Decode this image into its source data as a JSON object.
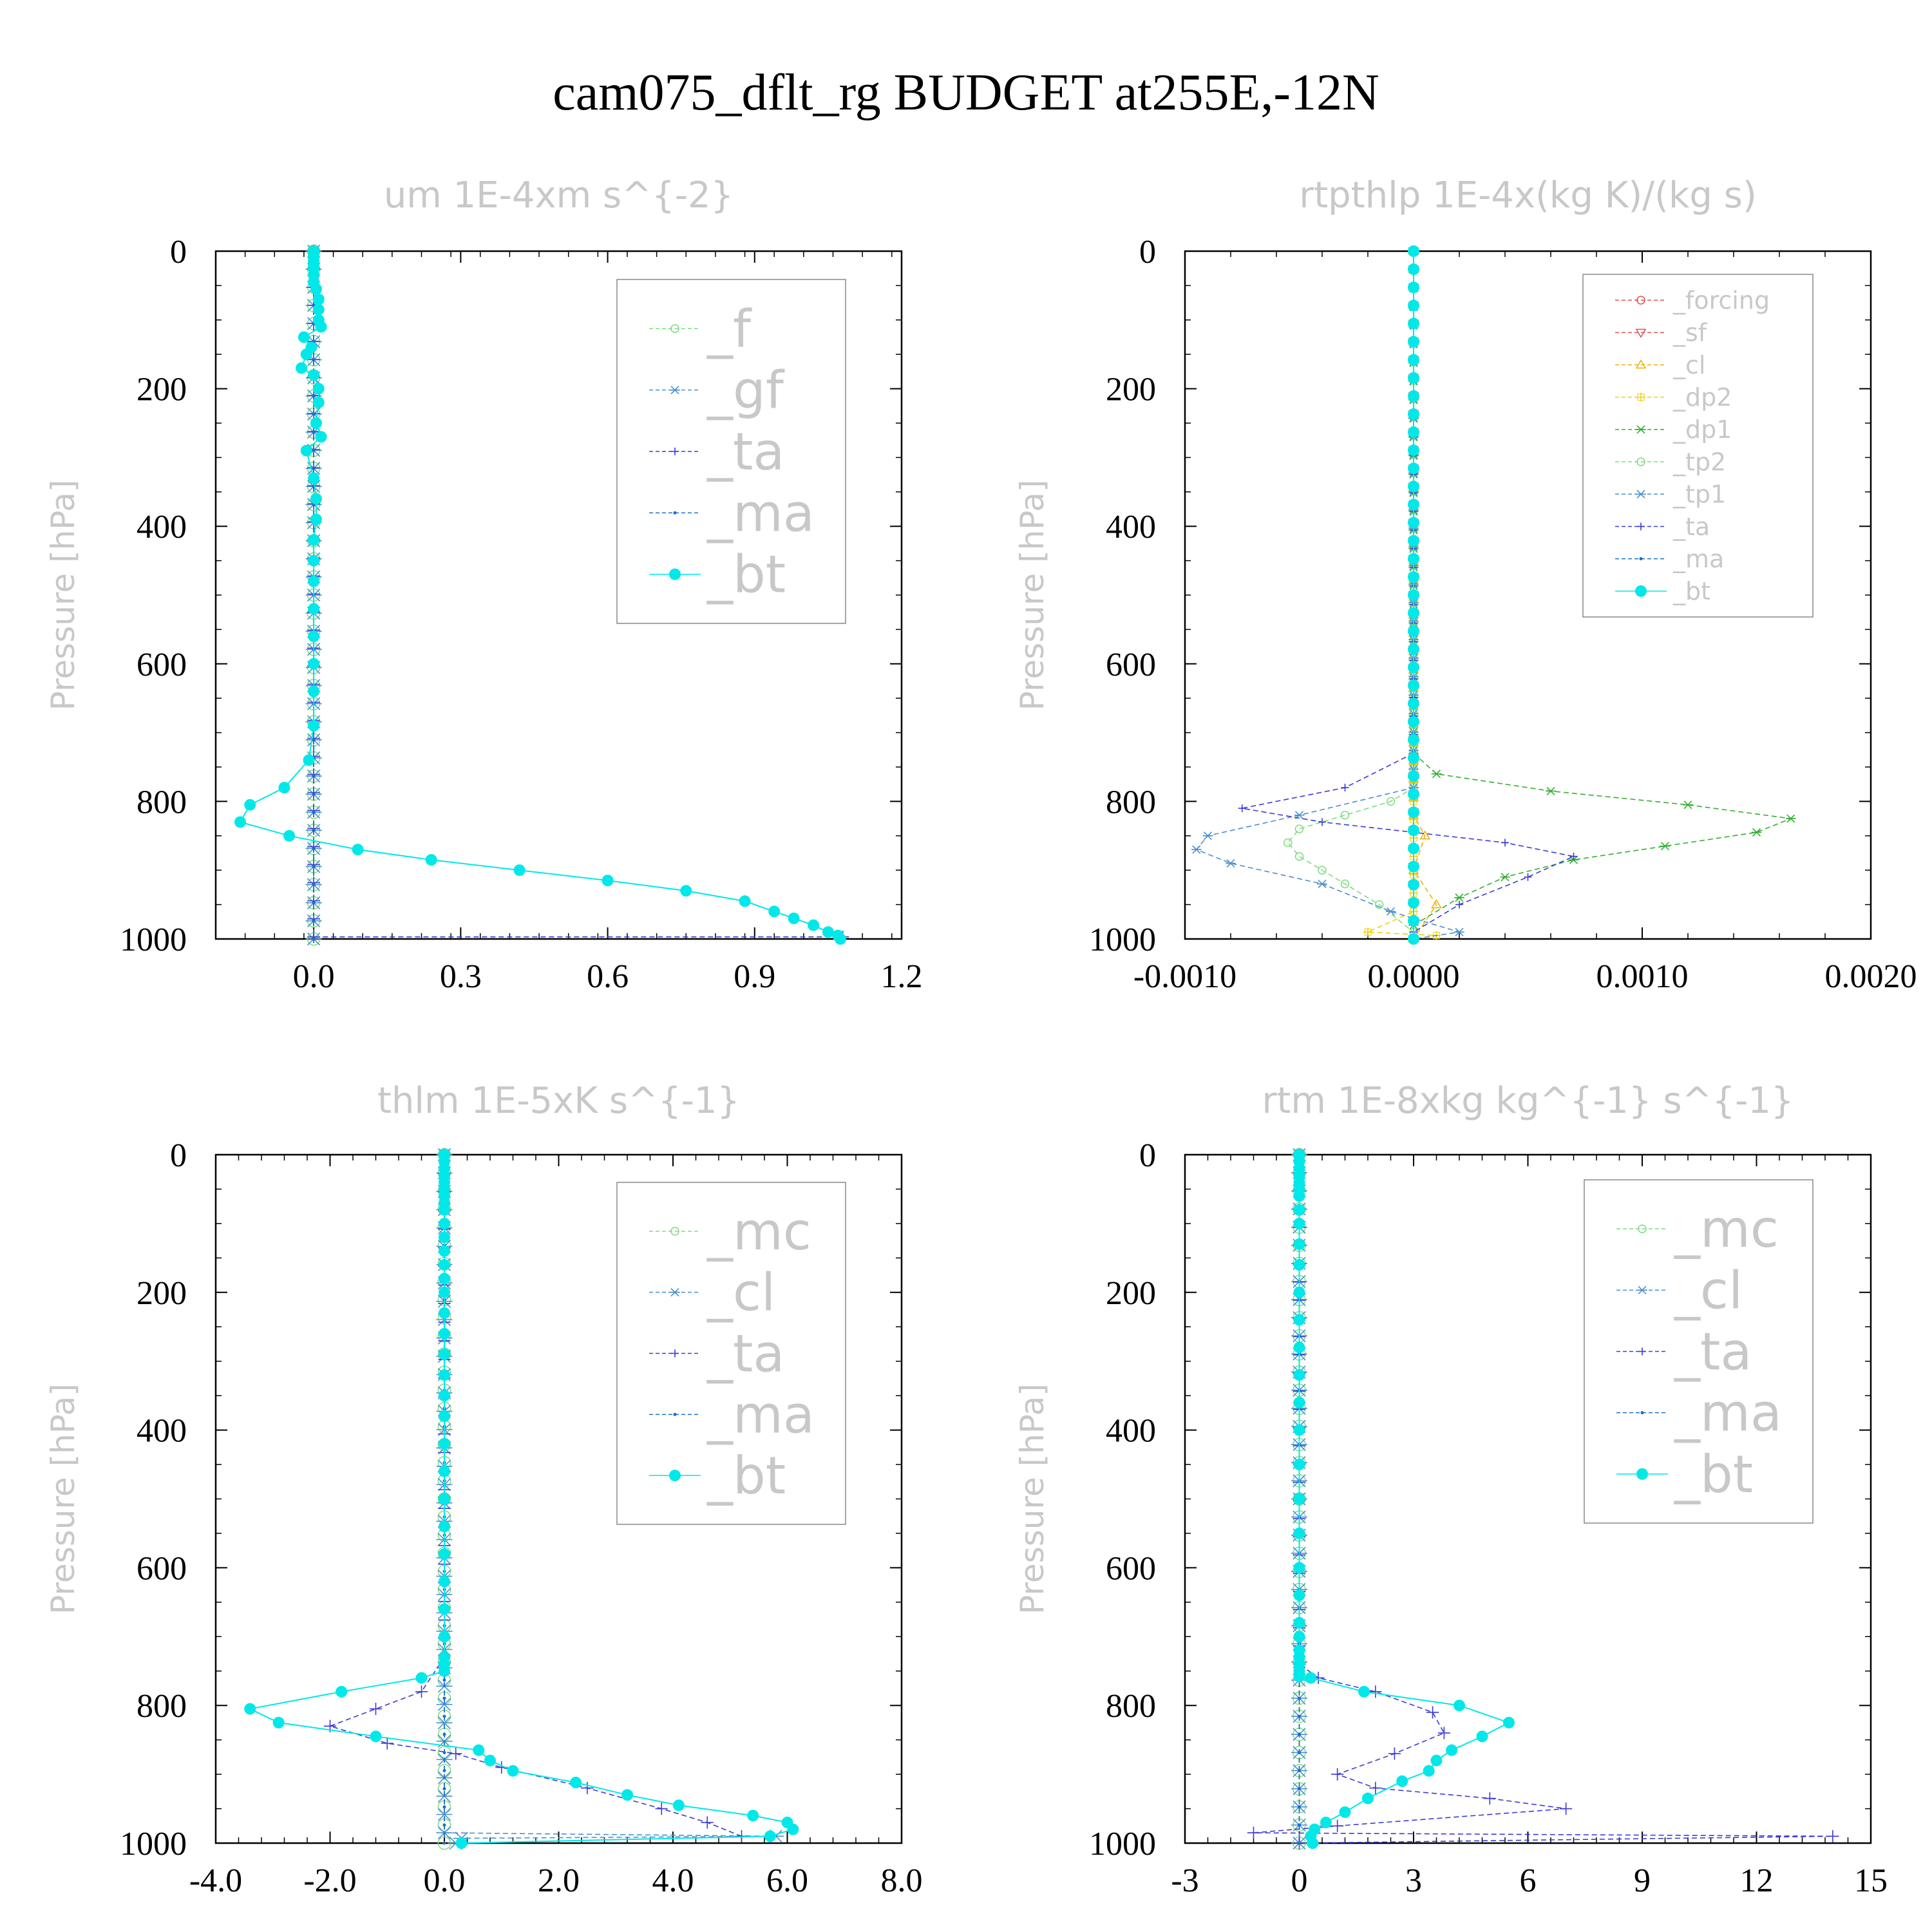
{
  "figure_title": "cam075_dflt_rg  BUDGET at255E,-12N",
  "colors": {
    "_f": "#7fdc7f",
    "_gf": "#4a8fd0",
    "_ta": "#3a3ad8",
    "_ma": "#1a6fc8",
    "_bt": "#00e8e8",
    "_mc": "#7fdc7f",
    "_cl_blue": "#4a8fd0",
    "_forcing": "#e05050",
    "_sf": "#e05050",
    "_cl": "#f0b000",
    "_dp2": "#f0d000",
    "_dp1": "#30b030",
    "_tp2": "#7fdc7f",
    "_tp1": "#4a8fd0"
  },
  "chart_data": [
    {
      "type": "line",
      "title": "um   1E-4xm s^{-2}",
      "ylabel": "Pressure [hPa]",
      "ylim": [
        1000,
        0
      ],
      "xlim": [
        -0.2,
        1.2
      ],
      "xticks": [
        "0.0",
        "0.3",
        "0.6",
        "0.9",
        "1.2"
      ],
      "yticks": [
        "0",
        "200",
        "400",
        "600",
        "800",
        "1000"
      ],
      "legend": [
        "_f",
        "_gf",
        "_ta",
        "_ma",
        "_bt"
      ],
      "legend_position": "top-right",
      "series": [
        {
          "name": "_f",
          "x": [
            0,
            0
          ],
          "y": [
            0,
            1000
          ]
        },
        {
          "name": "_gf",
          "x": [
            0,
            0
          ],
          "y": [
            0,
            1000
          ]
        },
        {
          "name": "_ta",
          "x": [
            0,
            0,
            1.08
          ],
          "y": [
            0,
            997,
            997
          ]
        },
        {
          "name": "_ma",
          "x": [
            0,
            0
          ],
          "y": [
            0,
            1000
          ]
        },
        {
          "name": "_bt",
          "x": [
            0,
            0,
            0,
            0,
            0,
            0,
            0,
            0,
            0.005,
            0.01,
            0.01,
            0.01,
            0.015,
            -0.02,
            -0.005,
            -0.015,
            -0.025,
            0,
            0.01,
            0.01,
            0.005,
            0.015,
            -0.015,
            0,
            0.005,
            0.005,
            0,
            0,
            0,
            0,
            0,
            0,
            0,
            0,
            -0.01,
            -0.06,
            -0.13,
            -0.15,
            -0.05,
            0.09,
            0.24,
            0.42,
            0.6,
            0.76,
            0.88,
            0.94,
            0.98,
            1.02,
            1.05,
            1.07,
            1.075
          ],
          "y": [
            0,
            5,
            10,
            15,
            20,
            25,
            35,
            45,
            55,
            70,
            85,
            100,
            110,
            125,
            140,
            150,
            170,
            180,
            200,
            220,
            250,
            270,
            290,
            330,
            360,
            390,
            420,
            450,
            480,
            520,
            560,
            600,
            640,
            690,
            740,
            780,
            805,
            830,
            850,
            870,
            885,
            900,
            915,
            930,
            945,
            960,
            970,
            980,
            990,
            995,
            1000
          ]
        }
      ]
    },
    {
      "type": "line",
      "title": "rtpthlp   1E-4x(kg K)/(kg s)",
      "ylabel": "Pressure [hPa]",
      "ylim": [
        1000,
        0
      ],
      "xlim": [
        -0.001,
        0.002
      ],
      "xticks": [
        "-0.0010",
        "0.0000",
        "0.0010",
        "0.0020"
      ],
      "yticks": [
        "0",
        "200",
        "400",
        "600",
        "800",
        "1000"
      ],
      "legend": [
        "_forcing",
        "_sf",
        "_cl",
        "_dp2",
        "_dp1",
        "_tp2",
        "_tp1",
        "_ta",
        "_ma",
        "_bt"
      ],
      "legend_position": "top-right",
      "series": [
        {
          "name": "_forcing",
          "x": [
            0,
            0
          ],
          "y": [
            0,
            1000
          ]
        },
        {
          "name": "_sf",
          "x": [
            0,
            0
          ],
          "y": [
            0,
            1000
          ]
        },
        {
          "name": "_cl",
          "x": [
            0,
            0,
            5e-05,
            0,
            0.0001,
            0
          ],
          "y": [
            0,
            820,
            850,
            900,
            950,
            1000
          ]
        },
        {
          "name": "_dp2",
          "x": [
            0,
            0,
            -0.0002,
            0.0001,
            0
          ],
          "y": [
            0,
            960,
            990,
            995,
            1000
          ]
        },
        {
          "name": "_dp1",
          "x": [
            0,
            0,
            0.0001,
            0.0006,
            0.0012,
            0.00165,
            0.0015,
            0.0011,
            0.0007,
            0.0004,
            0.0002,
            0
          ],
          "y": [
            0,
            730,
            760,
            785,
            805,
            825,
            845,
            865,
            885,
            910,
            940,
            980
          ]
        },
        {
          "name": "_tp2",
          "x": [
            0,
            0,
            -0.0001,
            -0.0003,
            -0.0005,
            -0.00055,
            -0.0005,
            -0.0004,
            -0.0003,
            -0.00015,
            0
          ],
          "y": [
            0,
            780,
            800,
            820,
            840,
            860,
            880,
            900,
            920,
            950,
            990
          ]
        },
        {
          "name": "_tp1",
          "x": [
            0,
            0,
            -0.0005,
            -0.0009,
            -0.00095,
            -0.0008,
            -0.0004,
            -0.0001,
            0.0002,
            0
          ],
          "y": [
            0,
            780,
            820,
            850,
            870,
            890,
            920,
            960,
            990,
            1000
          ]
        },
        {
          "name": "_ta",
          "x": [
            0,
            0,
            -0.0003,
            -0.00075,
            -0.0004,
            0.0004,
            0.0007,
            0.0005,
            0.0002,
            0
          ],
          "y": [
            0,
            730,
            780,
            810,
            830,
            860,
            880,
            910,
            950,
            990
          ]
        },
        {
          "name": "_ma",
          "x": [
            0,
            0
          ],
          "y": [
            0,
            1000
          ]
        },
        {
          "name": "_bt",
          "x": [
            0,
            0
          ],
          "y": [
            0,
            1000
          ]
        }
      ]
    },
    {
      "type": "line",
      "title": "thlm   1E-5xK s^{-1}",
      "ylabel": "Pressure [hPa]",
      "ylim": [
        1000,
        0
      ],
      "xlim": [
        -4.0,
        8.0
      ],
      "xticks": [
        "-4.0",
        "-2.0",
        "0.0",
        "2.0",
        "4.0",
        "6.0",
        "8.0"
      ],
      "yticks": [
        "0",
        "200",
        "400",
        "600",
        "800",
        "1000"
      ],
      "legend": [
        "_mc",
        "_cl",
        "_ta",
        "_ma",
        "_bt"
      ],
      "legend_position": "top-right",
      "series": [
        {
          "name": "_mc",
          "x": [
            0,
            0
          ],
          "y": [
            0,
            1000
          ]
        },
        {
          "name": "_cl",
          "x": [
            0,
            0,
            5.8,
            0.3,
            0.2
          ],
          "y": [
            0,
            985,
            990,
            993,
            1000
          ]
        },
        {
          "name": "_ta",
          "x": [
            0,
            0,
            -0.4,
            -1.2,
            -2.0,
            -1.0,
            0.2,
            1.0,
            2.5,
            3.8,
            4.6,
            5.2
          ],
          "y": [
            0,
            730,
            780,
            805,
            830,
            855,
            870,
            890,
            920,
            950,
            970,
            990
          ]
        },
        {
          "name": "_ma",
          "x": [
            0,
            0
          ],
          "y": [
            0,
            1000
          ]
        },
        {
          "name": "_bt",
          "x": [
            0,
            0,
            0,
            0,
            0,
            0,
            0,
            0,
            0,
            0,
            0,
            0,
            0,
            0,
            0,
            0,
            0,
            0,
            0,
            0,
            0,
            0,
            0,
            0,
            0,
            0,
            0,
            0,
            0,
            0,
            0,
            0,
            -0.4,
            -1.8,
            -3.4,
            -2.9,
            -1.2,
            0.6,
            0.8,
            1.2,
            2.3,
            3.2,
            4.1,
            5.4,
            6.0,
            6.1,
            5.7,
            0.3
          ],
          "y": [
            0,
            10,
            20,
            30,
            40,
            50,
            60,
            70,
            80,
            100,
            120,
            140,
            160,
            180,
            200,
            230,
            260,
            290,
            320,
            350,
            380,
            420,
            460,
            500,
            540,
            580,
            620,
            660,
            700,
            730,
            740,
            750,
            760,
            780,
            805,
            825,
            845,
            865,
            880,
            895,
            912,
            930,
            945,
            960,
            970,
            980,
            990,
            1000
          ]
        }
      ]
    },
    {
      "type": "line",
      "title": "rtm   1E-8xkg kg^{-1} s^{-1}",
      "ylabel": "Pressure [hPa]",
      "ylim": [
        1000,
        0
      ],
      "xlim": [
        -3,
        15
      ],
      "xticks": [
        "-3",
        "0",
        "3",
        "6",
        "9",
        "12",
        "15"
      ],
      "yticks": [
        "0",
        "200",
        "400",
        "600",
        "800",
        "1000"
      ],
      "legend": [
        "_mc",
        "_cl",
        "_ta",
        "_ma",
        "_bt"
      ],
      "legend_position": "top-right",
      "series": [
        {
          "name": "_mc",
          "x": [
            0,
            0
          ],
          "y": [
            0,
            1000
          ]
        },
        {
          "name": "_cl",
          "x": [
            0,
            0
          ],
          "y": [
            0,
            1000
          ]
        },
        {
          "name": "_ta",
          "x": [
            0,
            0,
            0.5,
            2.0,
            3.5,
            3.8,
            2.5,
            1.0,
            2.0,
            5.0,
            7.0,
            1.0,
            -1.2,
            14.0,
            0
          ],
          "y": [
            0,
            740,
            760,
            780,
            810,
            840,
            870,
            900,
            920,
            935,
            950,
            975,
            985,
            990,
            1000
          ]
        },
        {
          "name": "_ma",
          "x": [
            0,
            0
          ],
          "y": [
            0,
            1000
          ]
        },
        {
          "name": "_bt",
          "x": [
            0,
            0,
            0,
            0,
            0,
            0,
            0,
            0,
            0,
            0,
            0,
            0,
            0,
            0,
            0,
            0,
            0,
            0,
            0,
            0,
            0,
            0,
            0,
            0,
            0,
            0,
            0,
            0,
            0,
            0,
            0.3,
            1.7,
            4.2,
            5.5,
            4.8,
            4.0,
            3.6,
            3.4,
            2.7,
            1.8,
            1.2,
            0.7,
            0.4,
            0.3,
            0.35
          ],
          "y": [
            0,
            10,
            20,
            30,
            40,
            50,
            60,
            80,
            100,
            130,
            160,
            200,
            240,
            280,
            320,
            360,
            400,
            450,
            500,
            550,
            600,
            640,
            680,
            700,
            720,
            730,
            740,
            750,
            755,
            758,
            760,
            780,
            800,
            825,
            845,
            865,
            880,
            895,
            910,
            935,
            955,
            970,
            980,
            990,
            1000
          ]
        }
      ]
    }
  ]
}
